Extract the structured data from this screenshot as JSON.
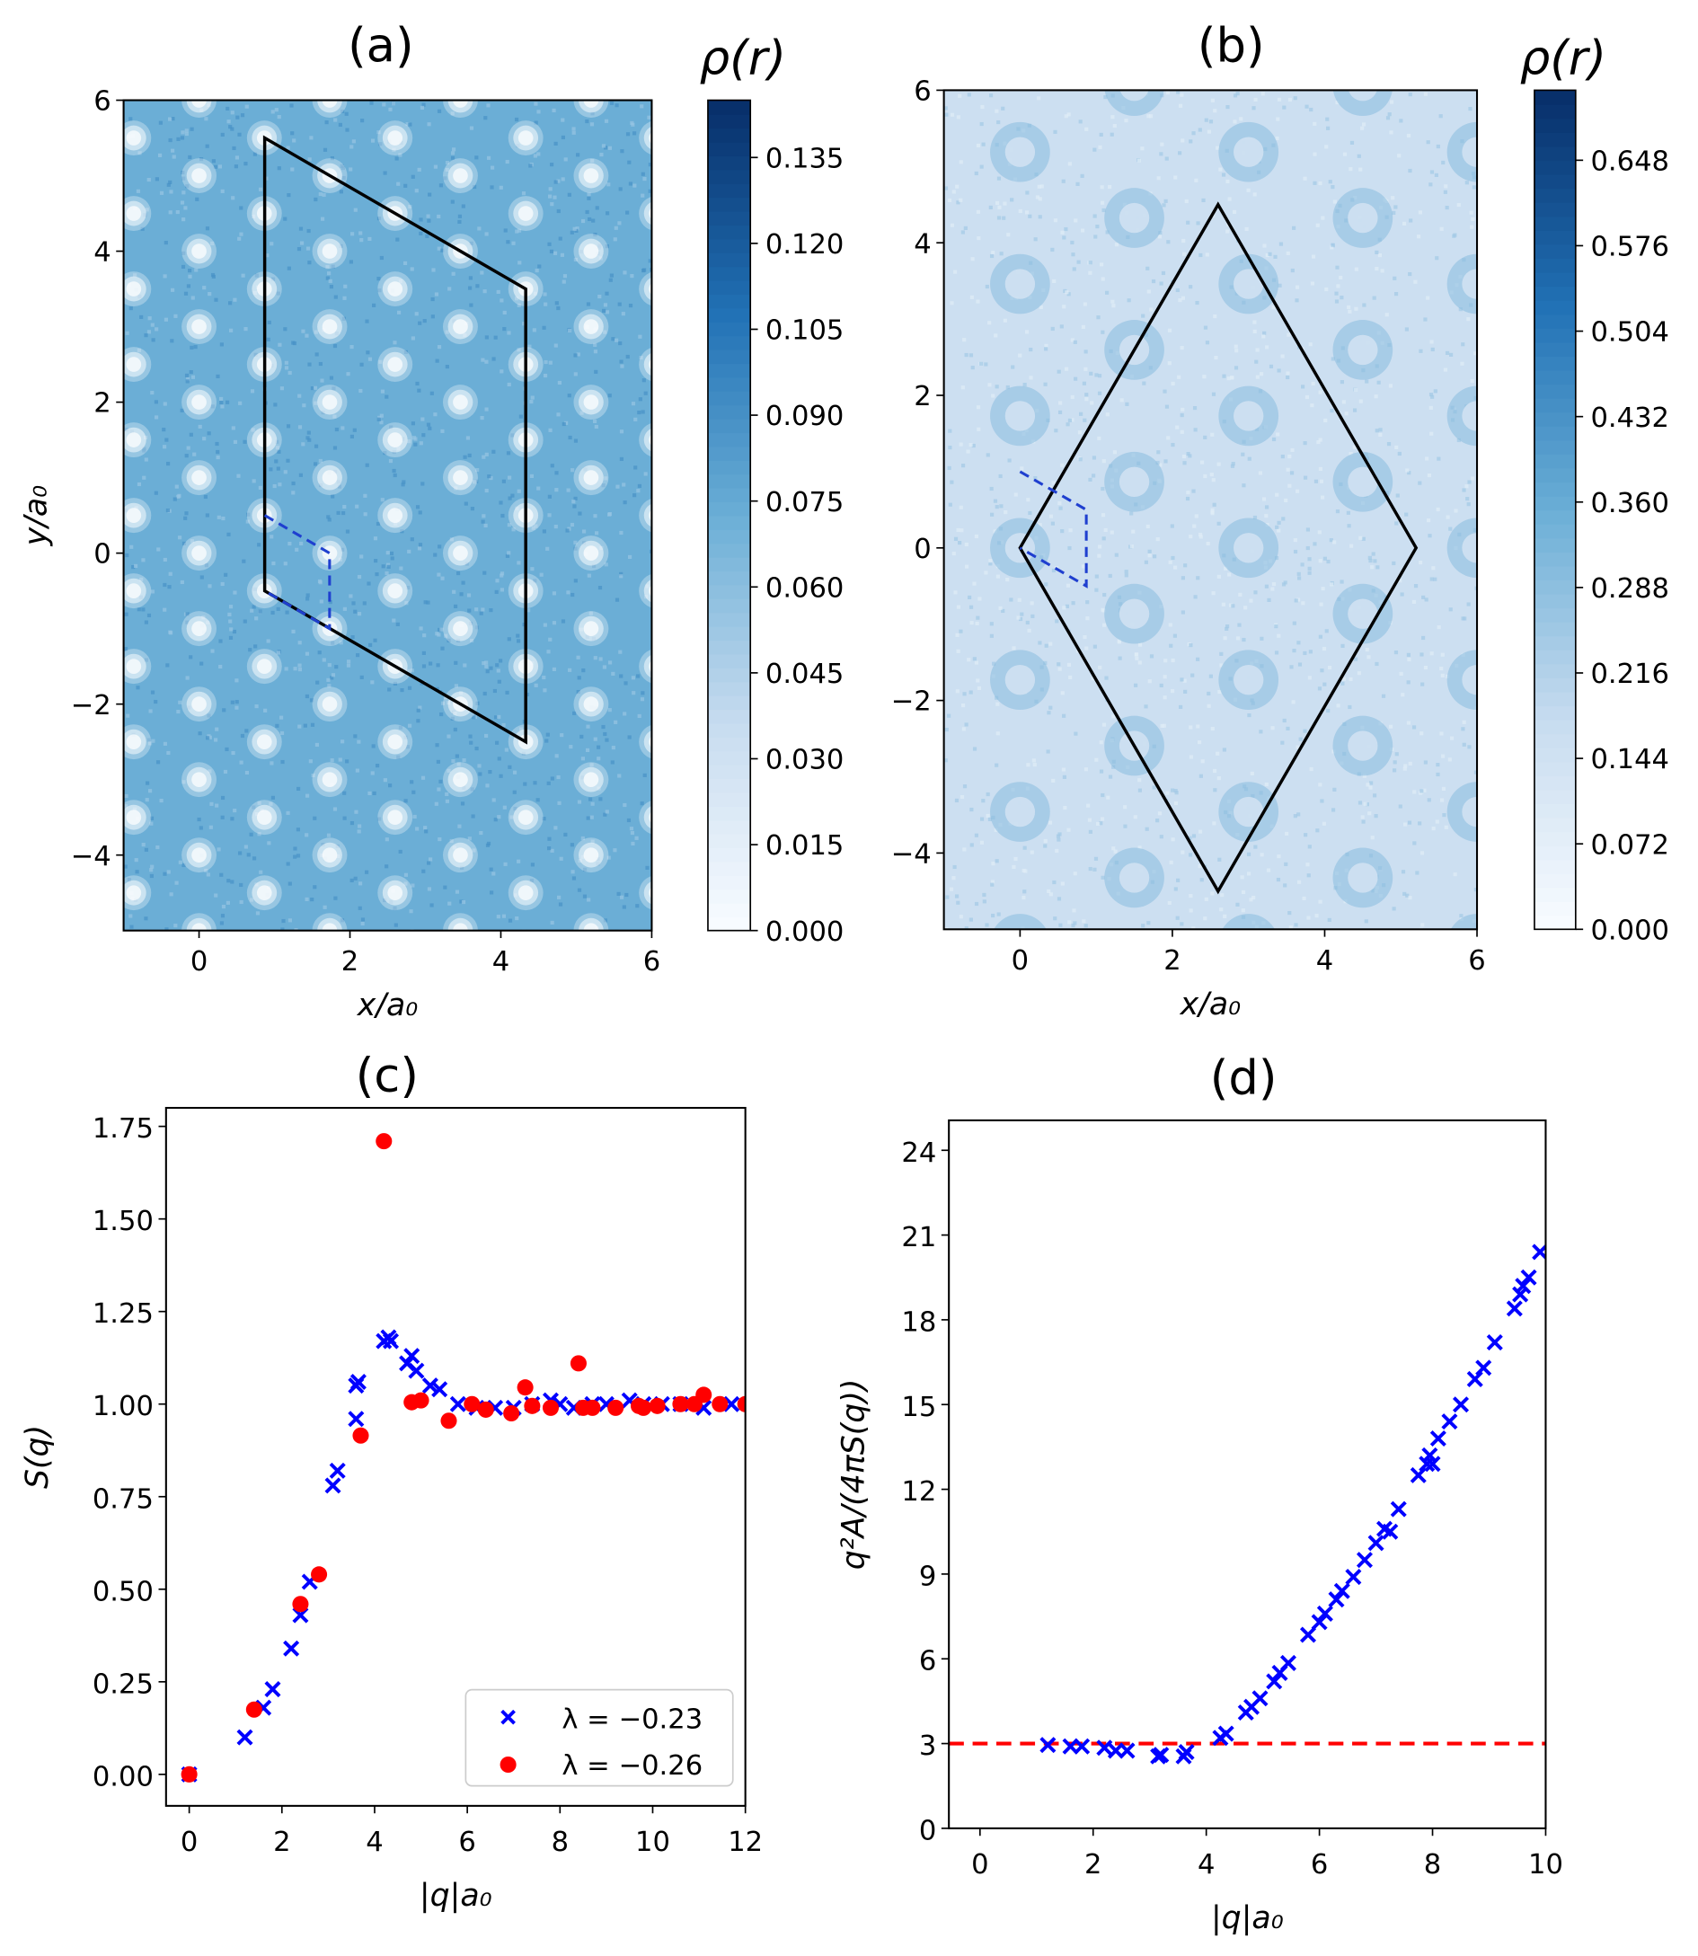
{
  "colors": {
    "cross": "#0000ff",
    "circle": "#ff0000",
    "refline": "#ff0000",
    "cmap_low": "#f7fbff",
    "cmap_high": "#08306b",
    "polygon": "#000000",
    "dashed_cell": "#1f3fcf"
  },
  "chart_data": [
    {
      "id": "a",
      "type": "heatmap",
      "title": "(a)",
      "xlabel": "x/a₀",
      "ylabel": "y/a₀",
      "xlim": [
        -1,
        6
      ],
      "ylim": [
        -5,
        6
      ],
      "xticks": [
        "0",
        "2",
        "4",
        "6"
      ],
      "yticks": [
        "−4",
        "−2",
        "0",
        "2",
        "4",
        "6"
      ],
      "xtick_values": [
        0,
        2,
        4,
        6
      ],
      "ytick_values": [
        -4,
        -2,
        0,
        2,
        4,
        6
      ],
      "colorbar": {
        "label": "ρ(r)",
        "range": [
          0,
          0.145
        ],
        "ticks": [
          "0.000",
          "0.015",
          "0.030",
          "0.045",
          "0.060",
          "0.075",
          "0.090",
          "0.105",
          "0.120",
          "0.135"
        ],
        "tick_values": [
          0,
          0.015,
          0.03,
          0.045,
          0.06,
          0.075,
          0.09,
          0.105,
          0.12,
          0.135
        ],
        "colormap": "Blues"
      },
      "pattern": "bright spots on triangular lattice",
      "polygon": [
        [
          0.87,
          5.5
        ],
        [
          4.33,
          3.5
        ],
        [
          4.33,
          -2.5
        ],
        [
          0.87,
          -0.5
        ]
      ],
      "dashed_cell": [
        [
          0.87,
          0.5
        ],
        [
          1.73,
          0
        ],
        [
          1.73,
          -1
        ],
        [
          0.87,
          -0.5
        ]
      ]
    },
    {
      "id": "b",
      "type": "heatmap",
      "title": "(b)",
      "xlabel": "x/a₀",
      "ylabel": "",
      "xlim": [
        -1,
        6
      ],
      "ylim": [
        -5,
        6
      ],
      "xticks": [
        "0",
        "2",
        "4",
        "6"
      ],
      "yticks": [
        "−4",
        "−2",
        "0",
        "2",
        "4",
        "6"
      ],
      "xtick_values": [
        0,
        2,
        4,
        6
      ],
      "ytick_values": [
        -4,
        -2,
        0,
        2,
        4,
        6
      ],
      "colorbar": {
        "label": "ρ(r)",
        "range": [
          0,
          0.707
        ],
        "ticks": [
          "0.000",
          "0.072",
          "0.144",
          "0.216",
          "0.288",
          "0.360",
          "0.432",
          "0.504",
          "0.576",
          "0.648"
        ],
        "tick_values": [
          0,
          0.072,
          0.144,
          0.216,
          0.288,
          0.36,
          0.432,
          0.504,
          0.576,
          0.648
        ],
        "colormap": "Blues"
      },
      "pattern": "dark rings on triangular lattice",
      "polygon": [
        [
          0,
          0
        ],
        [
          2.6,
          4.5
        ],
        [
          5.2,
          0
        ],
        [
          2.6,
          -4.5
        ]
      ],
      "dashed_cell": [
        [
          0,
          1
        ],
        [
          0.87,
          0.5
        ],
        [
          0.87,
          -0.5
        ],
        [
          0,
          0
        ]
      ]
    },
    {
      "id": "c",
      "type": "scatter",
      "title": "(c)",
      "xlabel": "|q|a₀",
      "ylabel": "S(q)",
      "xlim": [
        -0.5,
        12
      ],
      "ylim": [
        -0.085,
        1.8
      ],
      "xticks": [
        "0",
        "2",
        "4",
        "6",
        "8",
        "10",
        "12"
      ],
      "xtick_values": [
        0,
        2,
        4,
        6,
        8,
        10,
        12
      ],
      "yticks": [
        "0.00",
        "0.25",
        "0.50",
        "0.75",
        "1.00",
        "1.25",
        "1.50",
        "1.75"
      ],
      "ytick_values": [
        0,
        0.25,
        0.5,
        0.75,
        1,
        1.25,
        1.5,
        1.75
      ],
      "legend_position": "lower-right",
      "series": [
        {
          "name": "λ = −0.23",
          "marker": "x",
          "color": "#0000ff",
          "points": [
            [
              0,
              0
            ],
            [
              1.2,
              0.1
            ],
            [
              1.6,
              0.18
            ],
            [
              1.8,
              0.23
            ],
            [
              2.2,
              0.34
            ],
            [
              2.4,
              0.43
            ],
            [
              2.6,
              0.52
            ],
            [
              3.1,
              0.78
            ],
            [
              3.2,
              0.82
            ],
            [
              3.6,
              0.96
            ],
            [
              3.6,
              1.05
            ],
            [
              3.65,
              1.06
            ],
            [
              4.2,
              1.17
            ],
            [
              4.3,
              1.18
            ],
            [
              4.35,
              1.17
            ],
            [
              4.7,
              1.11
            ],
            [
              4.8,
              1.13
            ],
            [
              4.9,
              1.09
            ],
            [
              5.2,
              1.05
            ],
            [
              5.4,
              1.04
            ],
            [
              5.8,
              1.0
            ],
            [
              6.2,
              0.99
            ],
            [
              6.6,
              0.99
            ],
            [
              7.0,
              0.99
            ],
            [
              7.4,
              1.0
            ],
            [
              7.8,
              1.01
            ],
            [
              8.0,
              1.0
            ],
            [
              8.3,
              0.99
            ],
            [
              8.7,
              1.0
            ],
            [
              9.0,
              1.0
            ],
            [
              9.5,
              1.01
            ],
            [
              9.8,
              1.0
            ],
            [
              10.2,
              1.0
            ],
            [
              10.6,
              1.0
            ],
            [
              11.1,
              0.99
            ],
            [
              11.7,
              1.0
            ]
          ]
        },
        {
          "name": "λ = −0.26",
          "marker": "o",
          "color": "#ff0000",
          "points": [
            [
              0,
              0
            ],
            [
              1.4,
              0.175
            ],
            [
              2.4,
              0.46
            ],
            [
              2.8,
              0.54
            ],
            [
              3.7,
              0.915
            ],
            [
              4.2,
              1.71
            ],
            [
              4.8,
              1.005
            ],
            [
              5.0,
              1.01
            ],
            [
              5.6,
              0.955
            ],
            [
              6.1,
              1.0
            ],
            [
              6.4,
              0.985
            ],
            [
              6.95,
              0.975
            ],
            [
              7.25,
              1.045
            ],
            [
              7.4,
              0.995
            ],
            [
              7.8,
              0.99
            ],
            [
              8.4,
              1.11
            ],
            [
              8.5,
              0.99
            ],
            [
              8.7,
              0.99
            ],
            [
              9.2,
              0.99
            ],
            [
              9.7,
              0.995
            ],
            [
              9.8,
              0.99
            ],
            [
              10.1,
              0.995
            ],
            [
              10.6,
              1.0
            ],
            [
              10.9,
              1.0
            ],
            [
              11.1,
              1.025
            ],
            [
              11.45,
              1.0
            ],
            [
              12.0,
              1.0
            ]
          ]
        }
      ]
    },
    {
      "id": "d",
      "type": "scatter",
      "title": "(d)",
      "xlabel": "|q|a₀",
      "ylabel": "q²A/(4πS(q))",
      "xlim": [
        -0.55,
        10
      ],
      "ylim": [
        0,
        25.06
      ],
      "xticks": [
        "0",
        "2",
        "4",
        "6",
        "8",
        "10"
      ],
      "xtick_values": [
        0,
        2,
        4,
        6,
        8,
        10
      ],
      "yticks": [
        "0",
        "3",
        "6",
        "9",
        "12",
        "15",
        "18",
        "21",
        "24"
      ],
      "ytick_values": [
        0,
        3,
        6,
        9,
        12,
        15,
        18,
        21,
        24
      ],
      "reference_line": {
        "y": 3,
        "style": "dashed",
        "color": "#ff0000"
      },
      "series": [
        {
          "marker": "x",
          "color": "#0000ff",
          "points": [
            [
              1.2,
              2.95
            ],
            [
              1.6,
              2.9
            ],
            [
              1.8,
              2.9
            ],
            [
              2.2,
              2.85
            ],
            [
              2.4,
              2.75
            ],
            [
              2.6,
              2.75
            ],
            [
              3.15,
              2.55
            ],
            [
              3.2,
              2.6
            ],
            [
              3.6,
              2.55
            ],
            [
              3.65,
              2.7
            ],
            [
              4.25,
              3.2
            ],
            [
              4.35,
              3.35
            ],
            [
              4.7,
              4.1
            ],
            [
              4.8,
              4.3
            ],
            [
              4.95,
              4.6
            ],
            [
              5.2,
              5.2
            ],
            [
              5.3,
              5.5
            ],
            [
              5.45,
              5.85
            ],
            [
              5.8,
              6.85
            ],
            [
              6.0,
              7.3
            ],
            [
              6.1,
              7.6
            ],
            [
              6.3,
              8.1
            ],
            [
              6.4,
              8.4
            ],
            [
              6.6,
              8.9
            ],
            [
              6.8,
              9.5
            ],
            [
              7.0,
              10.1
            ],
            [
              7.15,
              10.6
            ],
            [
              7.25,
              10.5
            ],
            [
              7.4,
              11.3
            ],
            [
              7.75,
              12.5
            ],
            [
              7.9,
              12.9
            ],
            [
              7.95,
              13.2
            ],
            [
              8.0,
              12.9
            ],
            [
              8.1,
              13.8
            ],
            [
              8.3,
              14.4
            ],
            [
              8.5,
              15.0
            ],
            [
              8.75,
              15.9
            ],
            [
              8.9,
              16.3
            ],
            [
              9.1,
              17.2
            ],
            [
              9.45,
              18.4
            ],
            [
              9.55,
              18.9
            ],
            [
              9.6,
              19.2
            ],
            [
              9.7,
              19.5
            ],
            [
              9.9,
              20.4
            ]
          ]
        }
      ]
    }
  ]
}
